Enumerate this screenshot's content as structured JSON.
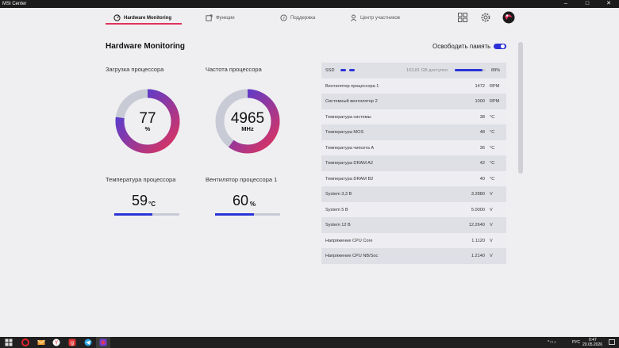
{
  "window": {
    "title": "MSI Center",
    "minimize_icon": "minimize-icon",
    "maximize_icon": "maximize-icon",
    "close_icon": "close-icon"
  },
  "nav": {
    "tabs": [
      {
        "label": "Hardware Monitoring",
        "icon": "gauge-icon",
        "active": true
      },
      {
        "label": "Функции",
        "icon": "features-icon",
        "active": false
      },
      {
        "label": "Поддержка",
        "icon": "support-icon",
        "active": false
      },
      {
        "label": "Центр участников",
        "icon": "user-icon",
        "active": false
      }
    ],
    "accent": "#e0335c"
  },
  "header": {
    "page_title": "Hardware Monitoring",
    "free_memory_label": "Освободить память"
  },
  "cards": {
    "cpu_load": {
      "label": "Загрузка процессора",
      "value": "77",
      "unit": "%",
      "fraction": 0.77
    },
    "cpu_freq": {
      "label": "Частота процессора",
      "value": "4965",
      "unit": "MHz",
      "fraction": 0.6
    },
    "cpu_temp": {
      "label": "Температура процессора",
      "value": "59",
      "unit": "°C",
      "fraction": 0.59
    },
    "cpu_fan": {
      "label": "Вентилятор процессора 1",
      "value": "60",
      "unit": "%",
      "fraction": 0.6
    }
  },
  "ssd": {
    "name": "SSD",
    "available": "163,81 GB доступно",
    "percent": "89%",
    "fraction": 0.89
  },
  "sensors": [
    {
      "name": "Вентилятор процессора 1",
      "value": "1472",
      "unit": "RPM"
    },
    {
      "name": "Системный вентилятор 2",
      "value": "1000",
      "unit": "RPM"
    },
    {
      "name": "Температура системы",
      "value": "38",
      "unit": "°C"
    },
    {
      "name": "Температура MOS",
      "value": "48",
      "unit": "°C"
    },
    {
      "name": "Температура чипсета A",
      "value": "36",
      "unit": "°C"
    },
    {
      "name": "Температура DRAM A2",
      "value": "42",
      "unit": "°C"
    },
    {
      "name": "Температура DRAM B2",
      "value": "40",
      "unit": "°C"
    },
    {
      "name": "System 3,3 B",
      "value": "3.2880",
      "unit": "V"
    },
    {
      "name": "System 5 B",
      "value": "5.0000",
      "unit": "V"
    },
    {
      "name": "System 12 B",
      "value": "12.2640",
      "unit": "V"
    },
    {
      "name": "Напряжение CPU Core",
      "value": "1.1120",
      "unit": "V"
    },
    {
      "name": "Напряжение CPU NB/Soc",
      "value": "1.2140",
      "unit": "V"
    }
  ],
  "taskbar": {
    "icons": [
      "start-icon",
      "search-icon",
      "opera-icon",
      "mail-icon",
      "yandex-icon",
      "app-icon",
      "telegram-icon",
      "msi-center-icon"
    ],
    "tray": {
      "language": "РУС",
      "time": "0:47",
      "date": "20.05.2026"
    }
  },
  "colors": {
    "accent_blue": "#2b34d6",
    "accent_red": "#e0335c",
    "track": "#c8cbd5"
  }
}
